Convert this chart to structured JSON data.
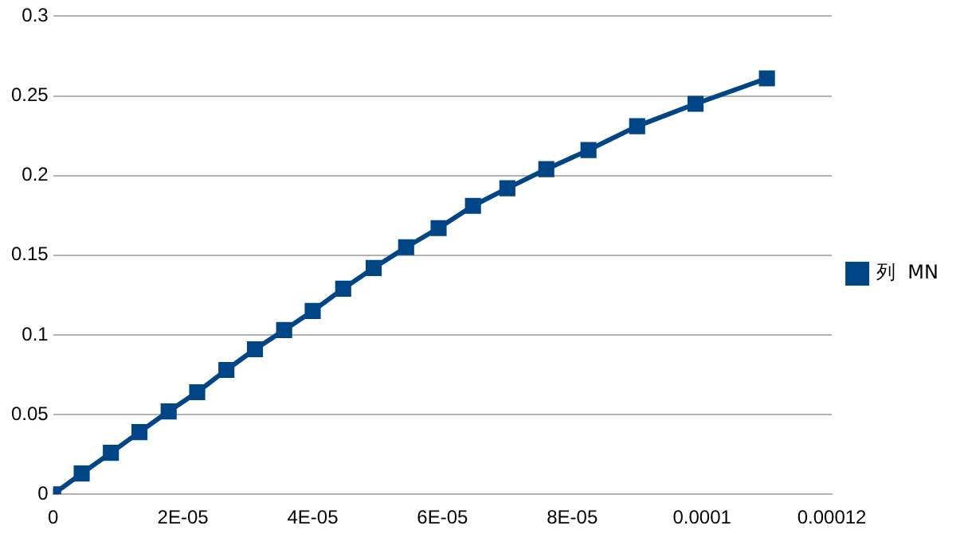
{
  "chart_data": {
    "type": "line",
    "x": [
      0,
      4.4e-06,
      8.9e-06,
      1.33e-05,
      1.78e-05,
      2.22e-05,
      2.67e-05,
      3.11e-05,
      3.56e-05,
      4e-05,
      4.47e-05,
      4.94e-05,
      5.44e-05,
      5.94e-05,
      6.47e-05,
      7e-05,
      7.6e-05,
      8.25e-05,
      9e-05,
      9.9e-05,
      0.00011
    ],
    "series": [
      {
        "name": "列  MN",
        "color": "#004586",
        "values": [
          0,
          0.013,
          0.026,
          0.039,
          0.052,
          0.064,
          0.078,
          0.091,
          0.103,
          0.115,
          0.129,
          0.142,
          0.155,
          0.167,
          0.181,
          0.192,
          0.204,
          0.216,
          0.231,
          0.245,
          0.261
        ]
      }
    ],
    "xlim": [
      0,
      0.00012
    ],
    "xticks": [
      0,
      {
        "value": 2e-05,
        "label": "2E-05"
      },
      {
        "value": 4e-05,
        "label": "4E-05"
      },
      {
        "value": 6e-05,
        "label": "6E-05"
      },
      {
        "value": 8e-05,
        "label": "8E-05"
      },
      0.0001,
      0.00012
    ],
    "ylim": [
      0,
      0.3
    ],
    "yticks": [
      0,
      0.05,
      0.1,
      0.15,
      0.2,
      0.25,
      0.3
    ],
    "grid": "y",
    "legend": "right",
    "marker": "square",
    "line_style": "solid"
  }
}
